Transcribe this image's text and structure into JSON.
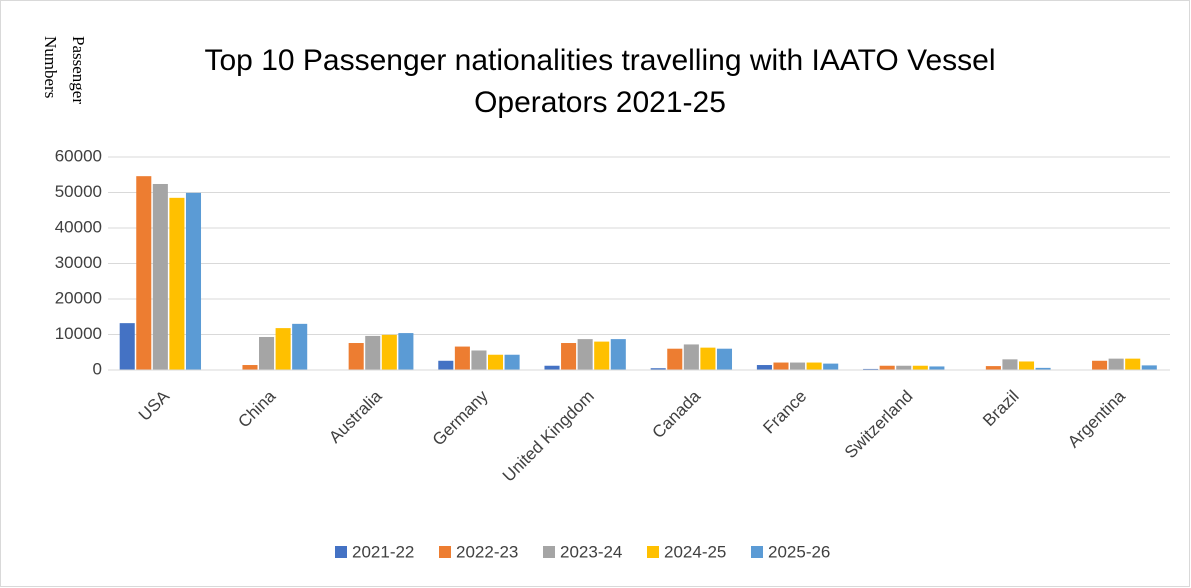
{
  "chart_data": {
    "type": "bar",
    "title": "Top 10 Passenger nationalities travelling with IAATO Vessel Operators 2021-25",
    "y_label": "Passenger Numbers",
    "categories": [
      "USA",
      "China",
      "Australia",
      "Germany",
      "United Kingdom",
      "Canada",
      "France",
      "Switzerland",
      "Brazil",
      "Argentina"
    ],
    "series": [
      {
        "name": "2021-22",
        "color": "#4472c4",
        "values": [
          13200,
          100,
          100,
          2600,
          1200,
          500,
          1400,
          300,
          100,
          100
        ]
      },
      {
        "name": "2022-23",
        "color": "#ed7d31",
        "values": [
          54600,
          1400,
          7600,
          6600,
          7600,
          6000,
          2100,
          1200,
          1100,
          2600
        ]
      },
      {
        "name": "2023-24",
        "color": "#a5a5a5",
        "values": [
          52400,
          9300,
          9600,
          5500,
          8700,
          7200,
          2100,
          1200,
          3000,
          3200
        ]
      },
      {
        "name": "2024-25",
        "color": "#ffc000",
        "values": [
          48500,
          11800,
          9900,
          4300,
          8000,
          6300,
          2100,
          1200,
          2400,
          3200
        ]
      },
      {
        "name": "2025-26",
        "color": "#5b9bd5",
        "values": [
          49900,
          13000,
          10400,
          4300,
          8700,
          6000,
          1800,
          1000,
          600,
          1300
        ]
      }
    ],
    "ylim": [
      0,
      60000
    ],
    "yticks": [
      0,
      10000,
      20000,
      30000,
      40000,
      50000,
      60000
    ],
    "grid": true,
    "legend": "bottom"
  }
}
